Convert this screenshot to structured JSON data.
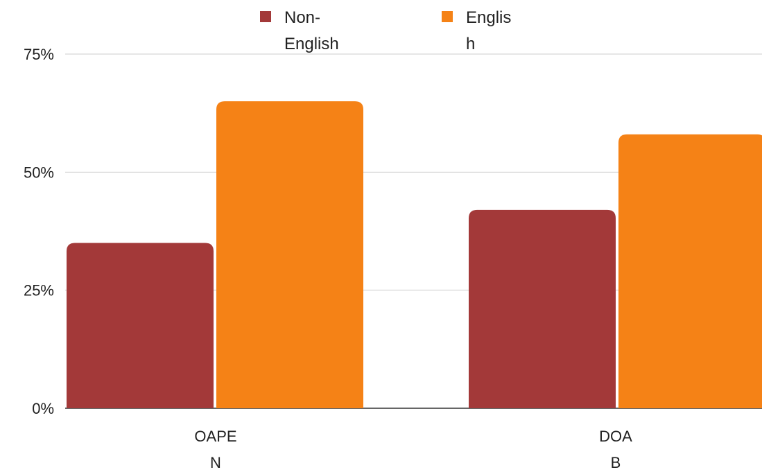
{
  "chart_data": {
    "type": "bar",
    "categories": [
      "OAPEN",
      "DOAB"
    ],
    "category_label_lines": [
      [
        "OAPE",
        "N"
      ],
      [
        "DOA",
        "B"
      ]
    ],
    "series": [
      {
        "name": "Non-English",
        "legend_lines": [
          "Non-",
          "English"
        ],
        "values": [
          35,
          42
        ],
        "color": "#a33939"
      },
      {
        "name": "English",
        "legend_lines": [
          "Englis",
          "h"
        ],
        "values": [
          65,
          58
        ],
        "color": "#f58216"
      }
    ],
    "y_ticks": [
      "0%",
      "25%",
      "50%",
      "75%"
    ],
    "y_tick_values": [
      0,
      25,
      50,
      75
    ],
    "ylim": [
      0,
      75
    ],
    "grid": true,
    "legend_position": "top-center"
  }
}
